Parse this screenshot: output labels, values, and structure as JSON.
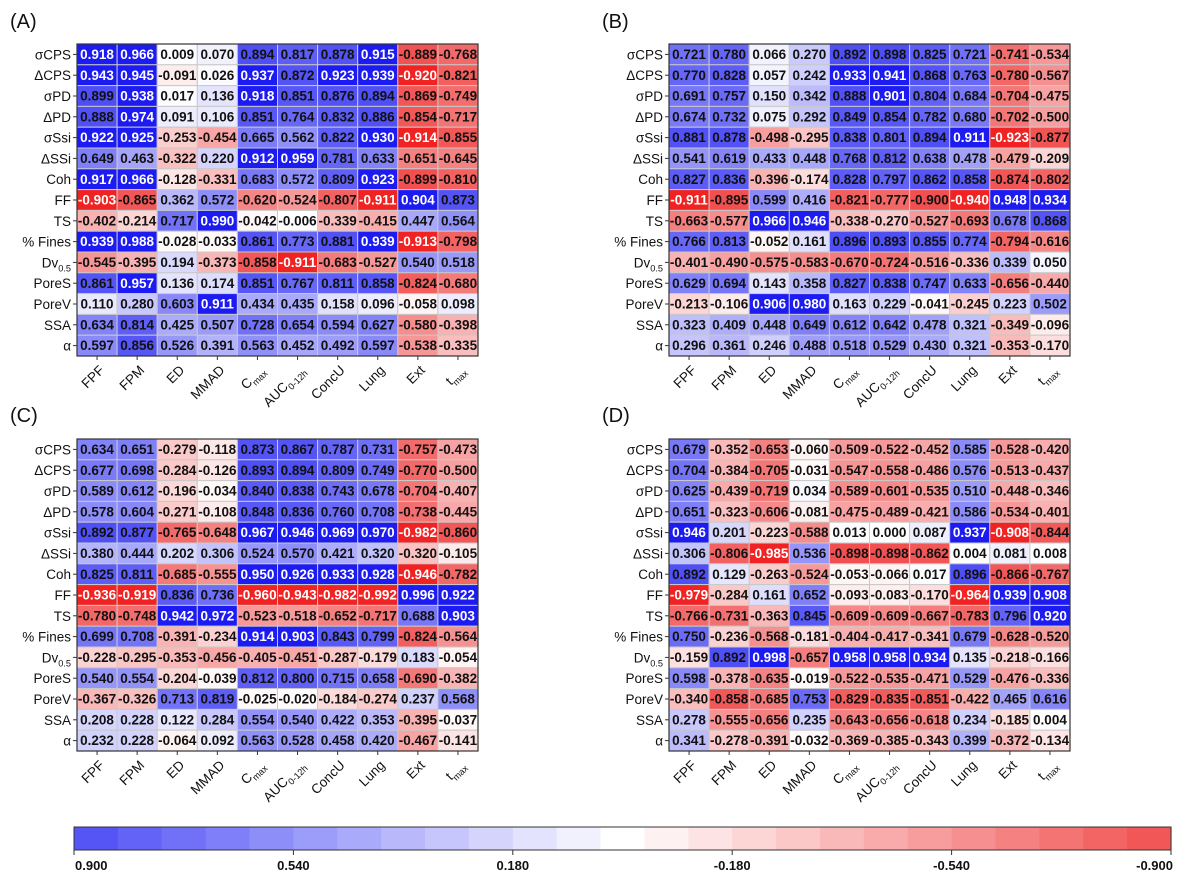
{
  "chart_data": [
    {
      "type": "heatmap",
      "panel_label": "(A)",
      "rows": [
        "σCPS",
        "ΔCPS",
        "σPD",
        "ΔPD",
        "σSsi",
        "ΔSSi",
        "Coh",
        "FF",
        "TS",
        "% Fines",
        "Dv0.5",
        "PoreS",
        "PoreV",
        "SSA",
        "α"
      ],
      "cols": [
        "FPF",
        "FPM",
        "ED",
        "MMAD",
        "Cmax",
        "AUC0-12h",
        "ConcU",
        "Lung",
        "Ext",
        "tmax"
      ],
      "values": [
        [
          "0.918",
          "0.966",
          "0.009",
          "0.070",
          "0.894",
          "0.817",
          "0.878",
          "0.915",
          "-0.889",
          "-0.768"
        ],
        [
          "0.943",
          "0.945",
          "-0.091",
          "0.026",
          "0.937",
          "0.872",
          "0.923",
          "0.939",
          "-0.920",
          "-0.821"
        ],
        [
          "0.899",
          "0.938",
          "0.017",
          "0.136",
          "0.918",
          "0.851",
          "0.876",
          "0.894",
          "-0.869",
          "-0.749"
        ],
        [
          "0.888",
          "0.974",
          "0.091",
          "0.106",
          "0.851",
          "0.764",
          "0.832",
          "0.886",
          "-0.854",
          "-0.717"
        ],
        [
          "0.922",
          "0.925",
          "-0.253",
          "-0.454",
          "0.665",
          "0.562",
          "0.822",
          "0.930",
          "-0.914",
          "-0.855"
        ],
        [
          "0.649",
          "0.463",
          "-0.322",
          "0.220",
          "0.912",
          "0.959",
          "0.781",
          "0.633",
          "-0.651",
          "-0.645"
        ],
        [
          "0.917",
          "0.966",
          "-0.128",
          "-0.331",
          "0.683",
          "0.572",
          "0.809",
          "0.923",
          "-0.899",
          "-0.810"
        ],
        [
          "-0.903",
          "-0.865",
          "0.362",
          "0.572",
          "-0.620",
          "-0.524",
          "-0.807",
          "-0.911",
          "0.904",
          "0.873"
        ],
        [
          "-0.402",
          "-0.214",
          "0.717",
          "0.990",
          "-0.042",
          "-0.006",
          "-0.339",
          "-0.415",
          "0.447",
          "0.564"
        ],
        [
          "0.939",
          "0.988",
          "-0.028",
          "-0.033",
          "0.861",
          "0.773",
          "0.881",
          "0.939",
          "-0.913",
          "-0.798"
        ],
        [
          "-0.545",
          "-0.395",
          "0.194",
          "-0.373",
          "-0.858",
          "-0.911",
          "-0.683",
          "-0.527",
          "0.540",
          "0.518"
        ],
        [
          "0.861",
          "0.957",
          "0.136",
          "0.174",
          "0.851",
          "0.767",
          "0.811",
          "0.858",
          "-0.824",
          "-0.680"
        ],
        [
          "0.110",
          "0.280",
          "0.603",
          "0.911",
          "0.434",
          "0.435",
          "0.158",
          "0.096",
          "-0.058",
          "0.098"
        ],
        [
          "0.634",
          "0.814",
          "0.425",
          "0.507",
          "0.728",
          "0.654",
          "0.594",
          "0.627",
          "-0.580",
          "-0.398"
        ],
        [
          "0.597",
          "0.856",
          "0.526",
          "0.391",
          "0.563",
          "0.452",
          "0.492",
          "0.597",
          "-0.538",
          "-0.335"
        ]
      ]
    },
    {
      "type": "heatmap",
      "panel_label": "(B)",
      "rows": [
        "σCPS",
        "ΔCPS",
        "σPD",
        "ΔPD",
        "σSsi",
        "ΔSSi",
        "Coh",
        "FF",
        "TS",
        "% Fines",
        "Dv0.5",
        "PoreS",
        "PoreV",
        "SSA",
        "α"
      ],
      "cols": [
        "FPF",
        "FPM",
        "ED",
        "MMAD",
        "Cmax",
        "AUC0-12h",
        "ConcU",
        "Lung",
        "Ext",
        "tmax"
      ],
      "values": [
        [
          "0.721",
          "0.780",
          "0.066",
          "0.270",
          "0.892",
          "0.898",
          "0.825",
          "0.721",
          "-0.741",
          "-0.534"
        ],
        [
          "0.770",
          "0.828",
          "0.057",
          "0.242",
          "0.933",
          "0.941",
          "0.868",
          "0.763",
          "-0.780",
          "-0.567"
        ],
        [
          "0.691",
          "0.757",
          "0.150",
          "0.342",
          "0.888",
          "0.901",
          "0.804",
          "0.684",
          "-0.704",
          "-0.475"
        ],
        [
          "0.674",
          "0.732",
          "0.075",
          "0.292",
          "0.849",
          "0.854",
          "0.782",
          "0.680",
          "-0.702",
          "-0.500"
        ],
        [
          "0.881",
          "0.878",
          "-0.498",
          "-0.295",
          "0.838",
          "0.801",
          "0.894",
          "0.911",
          "-0.923",
          "-0.877"
        ],
        [
          "0.541",
          "0.619",
          "0.433",
          "0.448",
          "0.768",
          "0.812",
          "0.638",
          "0.478",
          "-0.479",
          "-0.209"
        ],
        [
          "0.827",
          "0.836",
          "-0.396",
          "-0.174",
          "0.828",
          "0.797",
          "0.862",
          "0.858",
          "-0.874",
          "-0.802"
        ],
        [
          "-0.911",
          "-0.895",
          "0.599",
          "0.416",
          "-0.821",
          "-0.777",
          "-0.900",
          "-0.940",
          "0.948",
          "0.934"
        ],
        [
          "-0.663",
          "-0.577",
          "0.966",
          "0.946",
          "-0.338",
          "-0.270",
          "-0.527",
          "-0.693",
          "0.678",
          "0.868"
        ],
        [
          "0.766",
          "0.813",
          "-0.052",
          "0.161",
          "0.896",
          "0.893",
          "0.855",
          "0.774",
          "-0.794",
          "-0.616"
        ],
        [
          "-0.401",
          "-0.490",
          "-0.575",
          "-0.583",
          "-0.670",
          "-0.724",
          "-0.516",
          "-0.336",
          "0.339",
          "0.050"
        ],
        [
          "0.629",
          "0.694",
          "0.143",
          "0.358",
          "0.827",
          "0.838",
          "0.747",
          "0.633",
          "-0.656",
          "-0.440"
        ],
        [
          "-0.213",
          "-0.106",
          "0.906",
          "0.980",
          "0.163",
          "0.229",
          "-0.041",
          "-0.245",
          "0.223",
          "0.502"
        ],
        [
          "0.323",
          "0.409",
          "0.448",
          "0.649",
          "0.612",
          "0.642",
          "0.478",
          "0.321",
          "-0.349",
          "-0.096"
        ],
        [
          "0.296",
          "0.361",
          "0.246",
          "0.488",
          "0.518",
          "0.529",
          "0.430",
          "0.321",
          "-0.353",
          "-0.170"
        ]
      ]
    },
    {
      "type": "heatmap",
      "panel_label": "(C)",
      "rows": [
        "σCPS",
        "ΔCPS",
        "σPD",
        "ΔPD",
        "σSsi",
        "ΔSSi",
        "Coh",
        "FF",
        "TS",
        "% Fines",
        "Dv0.5",
        "PoreS",
        "PoreV",
        "SSA",
        "α"
      ],
      "cols": [
        "FPF",
        "FPM",
        "ED",
        "MMAD",
        "Cmax",
        "AUC0-12h",
        "ConcU",
        "Lung",
        "Ext",
        "tmax"
      ],
      "values": [
        [
          "0.634",
          "0.651",
          "-0.279",
          "-0.118",
          "0.873",
          "0.867",
          "0.787",
          "0.731",
          "-0.757",
          "-0.473"
        ],
        [
          "0.677",
          "0.698",
          "-0.284",
          "-0.126",
          "0.893",
          "0.894",
          "0.809",
          "0.749",
          "-0.770",
          "-0.500"
        ],
        [
          "0.589",
          "0.612",
          "-0.196",
          "-0.034",
          "0.840",
          "0.838",
          "0.743",
          "0.678",
          "-0.704",
          "-0.407"
        ],
        [
          "0.578",
          "0.604",
          "-0.271",
          "-0.108",
          "0.848",
          "0.836",
          "0.760",
          "0.708",
          "-0.738",
          "-0.445"
        ],
        [
          "0.892",
          "0.877",
          "-0.765",
          "-0.648",
          "0.967",
          "0.946",
          "0.969",
          "0.970",
          "-0.982",
          "-0.860"
        ],
        [
          "0.380",
          "0.444",
          "0.202",
          "0.306",
          "0.524",
          "0.570",
          "0.421",
          "0.320",
          "-0.320",
          "-0.105"
        ],
        [
          "0.825",
          "0.811",
          "-0.685",
          "-0.555",
          "0.950",
          "0.926",
          "0.933",
          "0.928",
          "-0.946",
          "-0.782"
        ],
        [
          "-0.936",
          "-0.919",
          "0.836",
          "0.736",
          "-0.960",
          "-0.943",
          "-0.982",
          "-0.992",
          "0.996",
          "0.922"
        ],
        [
          "-0.780",
          "-0.748",
          "0.942",
          "0.972",
          "-0.523",
          "-0.518",
          "-0.652",
          "-0.717",
          "0.688",
          "0.903"
        ],
        [
          "0.699",
          "0.708",
          "-0.391",
          "-0.234",
          "0.914",
          "0.903",
          "0.843",
          "0.799",
          "-0.824",
          "-0.564"
        ],
        [
          "-0.228",
          "-0.295",
          "-0.353",
          "-0.456",
          "-0.405",
          "-0.451",
          "-0.287",
          "-0.179",
          "0.183",
          "-0.054"
        ],
        [
          "0.540",
          "0.554",
          "-0.204",
          "-0.039",
          "0.812",
          "0.800",
          "0.715",
          "0.658",
          "-0.690",
          "-0.382"
        ],
        [
          "-0.367",
          "-0.326",
          "0.713",
          "0.819",
          "-0.025",
          "-0.020",
          "-0.184",
          "-0.274",
          "0.237",
          "0.568"
        ],
        [
          "0.208",
          "0.228",
          "0.122",
          "0.284",
          "0.554",
          "0.540",
          "0.422",
          "0.353",
          "-0.395",
          "-0.037"
        ],
        [
          "0.232",
          "0.228",
          "-0.064",
          "0.092",
          "0.563",
          "0.528",
          "0.458",
          "0.420",
          "-0.467",
          "-0.141"
        ]
      ]
    },
    {
      "type": "heatmap",
      "panel_label": "(D)",
      "rows": [
        "σCPS",
        "ΔCPS",
        "σPD",
        "ΔPD",
        "σSsi",
        "ΔSSi",
        "Coh",
        "FF",
        "TS",
        "% Fines",
        "Dv0.5",
        "PoreS",
        "PoreV",
        "SSA",
        "α"
      ],
      "cols": [
        "FPF",
        "FPM",
        "ED",
        "MMAD",
        "Cmax",
        "AUC0-12h",
        "ConcU",
        "Lung",
        "Ext",
        "tmax"
      ],
      "values": [
        [
          "0.679",
          "-0.352",
          "-0.653",
          "-0.060",
          "-0.509",
          "-0.522",
          "-0.452",
          "0.585",
          "-0.528",
          "-0.420"
        ],
        [
          "0.704",
          "-0.384",
          "-0.705",
          "-0.031",
          "-0.547",
          "-0.558",
          "-0.486",
          "0.576",
          "-0.513",
          "-0.437"
        ],
        [
          "0.625",
          "-0.439",
          "-0.719",
          "0.034",
          "-0.589",
          "-0.601",
          "-0.535",
          "0.510",
          "-0.448",
          "-0.346"
        ],
        [
          "0.651",
          "-0.323",
          "-0.606",
          "-0.081",
          "-0.475",
          "-0.489",
          "-0.421",
          "0.586",
          "-0.534",
          "-0.401"
        ],
        [
          "0.946",
          "0.201",
          "-0.223",
          "-0.588",
          "0.013",
          "0.000",
          "0.087",
          "0.937",
          "-0.908",
          "-0.844"
        ],
        [
          "0.306",
          "-0.806",
          "-0.985",
          "0.536",
          "-0.898",
          "-0.898",
          "-0.862",
          "0.004",
          "0.081",
          "0.008"
        ],
        [
          "0.892",
          "0.129",
          "-0.263",
          "-0.524",
          "-0.053",
          "-0.066",
          "0.017",
          "0.896",
          "-0.866",
          "-0.767"
        ],
        [
          "-0.979",
          "-0.284",
          "0.161",
          "0.652",
          "-0.093",
          "-0.083",
          "-0.170",
          "-0.964",
          "0.939",
          "0.908"
        ],
        [
          "-0.766",
          "-0.731",
          "-0.363",
          "0.845",
          "-0.609",
          "-0.609",
          "-0.667",
          "-0.783",
          "0.796",
          "0.920"
        ],
        [
          "0.750",
          "-0.236",
          "-0.568",
          "-0.181",
          "-0.404",
          "-0.417",
          "-0.341",
          "0.679",
          "-0.628",
          "-0.520"
        ],
        [
          "-0.159",
          "0.892",
          "0.998",
          "-0.657",
          "0.958",
          "0.958",
          "0.934",
          "0.135",
          "-0.218",
          "-0.166"
        ],
        [
          "0.598",
          "-0.378",
          "-0.635",
          "-0.019",
          "-0.522",
          "-0.535",
          "-0.471",
          "0.529",
          "-0.476",
          "-0.336"
        ],
        [
          "-0.340",
          "-0.858",
          "-0.685",
          "0.753",
          "-0.829",
          "-0.835",
          "-0.851",
          "-0.422",
          "0.465",
          "0.616"
        ],
        [
          "0.278",
          "-0.555",
          "-0.656",
          "0.235",
          "-0.643",
          "-0.656",
          "-0.618",
          "0.234",
          "-0.185",
          "0.004"
        ],
        [
          "0.341",
          "-0.278",
          "-0.391",
          "-0.032",
          "-0.369",
          "-0.385",
          "-0.343",
          "0.399",
          "-0.372",
          "-0.134"
        ]
      ]
    }
  ],
  "colorbar": {
    "tick_labels": [
      "0.900",
      "0.540",
      "0.180",
      "-0.180",
      "-0.540",
      "-0.900"
    ],
    "vmax": 0.9,
    "vmin": -0.9,
    "color_positive": "#3a3af5",
    "color_neutral": "#ffffff",
    "color_negative": "#f03c3c",
    "sat_positive": "#1c1cf2",
    "sat_negative": "#f02222"
  }
}
